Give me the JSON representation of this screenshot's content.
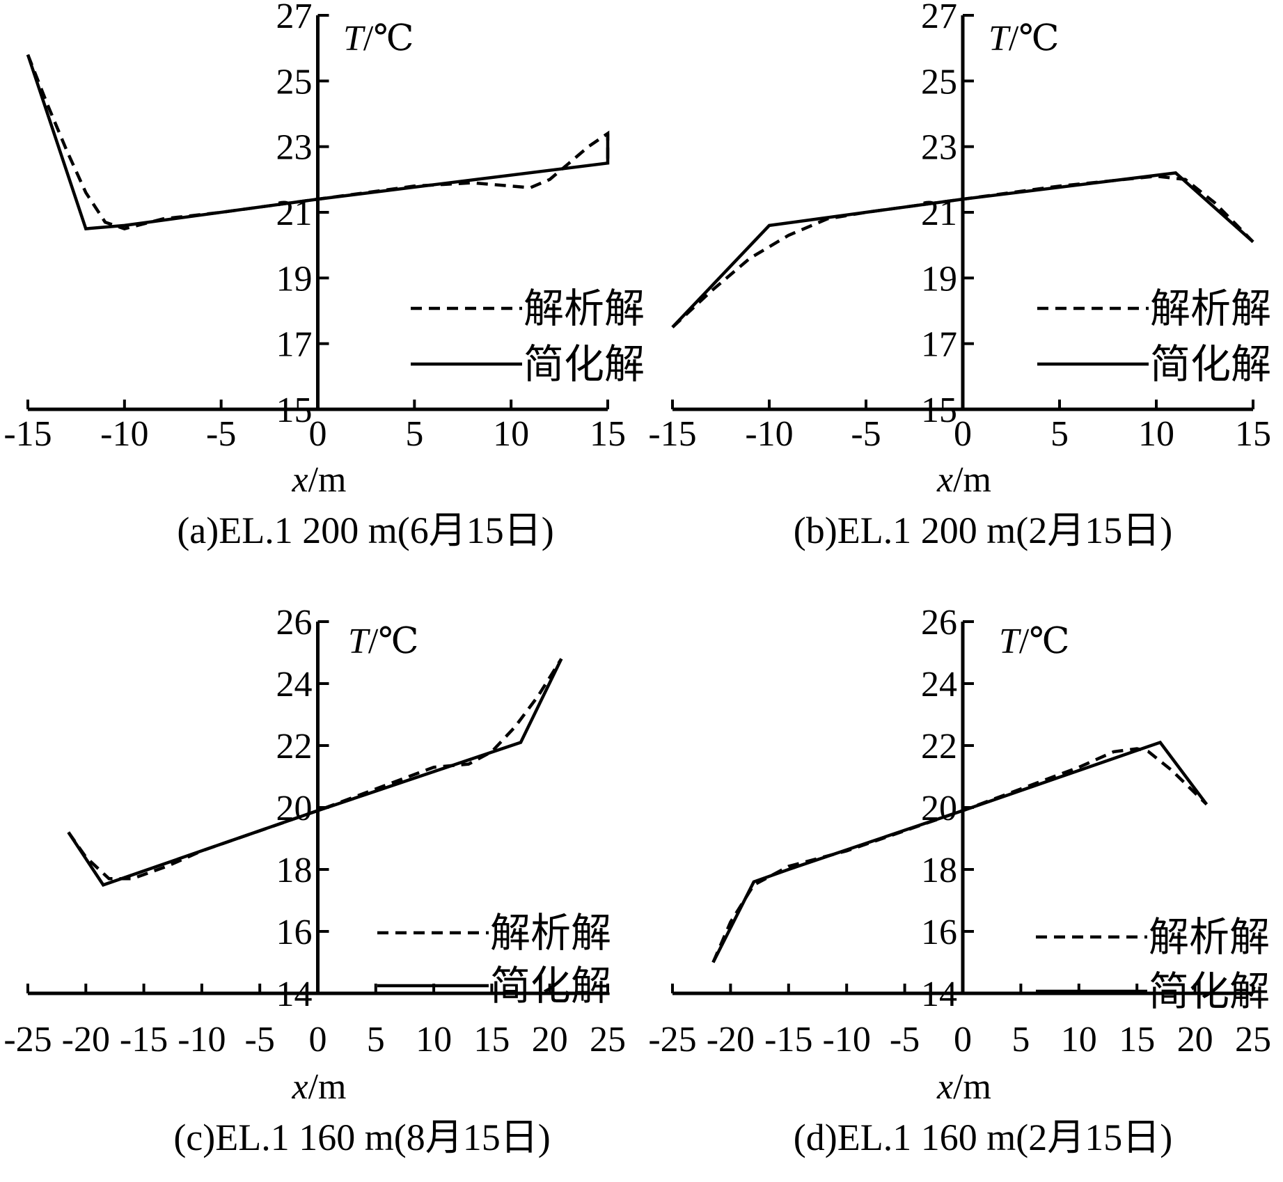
{
  "chart_data": [
    {
      "type": "line",
      "caption": "(a)EL.1 200 m(6月15日)",
      "ylabel_var": "T",
      "ylabel_unit": "/℃",
      "xlabel_var": "x",
      "xlabel_unit": "/m",
      "xlim": [
        -15,
        15
      ],
      "ylim": [
        15,
        27
      ],
      "xticks": [
        -15,
        -10,
        -5,
        0,
        5,
        10,
        15
      ],
      "xtick_labels": [
        "-15",
        "-10",
        "-5",
        "0",
        "5",
        "10",
        "15"
      ],
      "yticks": [
        15,
        17,
        19,
        21,
        23,
        25,
        27
      ],
      "ytick_labels": [
        "15",
        "17",
        "19",
        "21",
        "23",
        "25",
        "27"
      ],
      "legend": [
        "解析解",
        "简化解"
      ],
      "series": [
        {
          "name": "解析解",
          "style": "dashed",
          "x": [
            -15,
            -14,
            -13,
            -12,
            -11,
            -10,
            -8,
            -5,
            0,
            5,
            8,
            10,
            11,
            12,
            13,
            14,
            15,
            15
          ],
          "y": [
            25.8,
            24.3,
            22.9,
            21.6,
            20.7,
            20.5,
            20.8,
            21.0,
            21.4,
            21.8,
            21.9,
            21.8,
            21.75,
            22.0,
            22.5,
            23.0,
            23.4,
            22.5
          ]
        },
        {
          "name": "简化解",
          "style": "solid",
          "x": [
            -15,
            -12,
            -10,
            0,
            15,
            15
          ],
          "y": [
            25.8,
            20.5,
            20.6,
            21.4,
            22.5,
            23.4
          ]
        }
      ]
    },
    {
      "type": "line",
      "caption": "(b)EL.1 200 m(2月15日)",
      "ylabel_var": "T",
      "ylabel_unit": "/℃",
      "xlabel_var": "x",
      "xlabel_unit": "/m",
      "xlim": [
        -15,
        15
      ],
      "ylim": [
        15,
        27
      ],
      "xticks": [
        -15,
        -10,
        -5,
        0,
        5,
        10,
        15
      ],
      "xtick_labels": [
        "-15",
        "-10",
        "-5",
        "0",
        "5",
        "10",
        "15"
      ],
      "yticks": [
        15,
        17,
        19,
        21,
        23,
        25,
        27
      ],
      "ytick_labels": [
        "15",
        "17",
        "19",
        "21",
        "23",
        "25",
        "27"
      ],
      "legend": [
        "解析解",
        "简化解"
      ],
      "series": [
        {
          "name": "解析解",
          "style": "dashed",
          "x": [
            -15,
            -13,
            -11,
            -9,
            -7,
            -5,
            0,
            5,
            10,
            11.5,
            13,
            15
          ],
          "y": [
            17.5,
            18.6,
            19.6,
            20.3,
            20.8,
            21.0,
            21.4,
            21.8,
            22.1,
            22.0,
            21.3,
            20.1
          ]
        },
        {
          "name": "简化解",
          "style": "solid",
          "x": [
            -15,
            -10,
            0,
            11,
            15
          ],
          "y": [
            17.5,
            20.6,
            21.4,
            22.2,
            20.1
          ]
        }
      ]
    },
    {
      "type": "line",
      "caption": "(c)EL.1 160 m(8月15日)",
      "ylabel_var": "T",
      "ylabel_unit": "/℃",
      "xlabel_var": "x",
      "xlabel_unit": "/m",
      "xlim": [
        -25,
        25
      ],
      "ylim": [
        14,
        26
      ],
      "xticks": [
        -25,
        -20,
        -15,
        -10,
        -5,
        0,
        5,
        10,
        15,
        20,
        25
      ],
      "xtick_labels": [
        "-25",
        "-20",
        "-15",
        "-10",
        "-5",
        "0",
        "5",
        "10",
        "15",
        "20",
        "25"
      ],
      "yticks": [
        14,
        16,
        18,
        20,
        22,
        24,
        26
      ],
      "ytick_labels": [
        "14",
        "16",
        "18",
        "20",
        "22",
        "24",
        "26"
      ],
      "legend": [
        "解析解",
        "简化解"
      ],
      "series": [
        {
          "name": "解析解",
          "style": "dashed",
          "x": [
            -21.5,
            -20,
            -18,
            -16,
            -13,
            -10,
            0,
            10,
            13,
            15,
            17,
            19,
            21
          ],
          "y": [
            19.2,
            18.4,
            17.7,
            17.7,
            18.1,
            18.6,
            19.9,
            21.3,
            21.4,
            21.8,
            22.6,
            23.6,
            24.8
          ]
        },
        {
          "name": "简化解",
          "style": "solid",
          "x": [
            -21.5,
            -18.5,
            0,
            17.5,
            21
          ],
          "y": [
            19.2,
            17.5,
            19.9,
            22.1,
            24.8
          ]
        }
      ]
    },
    {
      "type": "line",
      "caption": "(d)EL.1 160 m(2月15日)",
      "ylabel_var": "T",
      "ylabel_unit": "/℃",
      "xlabel_var": "x",
      "xlabel_unit": "/m",
      "xlim": [
        -25,
        25
      ],
      "ylim": [
        14,
        26
      ],
      "xticks": [
        -25,
        -20,
        -15,
        -10,
        -5,
        0,
        5,
        10,
        15,
        20,
        25
      ],
      "xtick_labels": [
        "-25",
        "-20",
        "-15",
        "-10",
        "-5",
        "0",
        "5",
        "10",
        "15",
        "20",
        "25"
      ],
      "yticks": [
        14,
        16,
        18,
        20,
        22,
        24,
        26
      ],
      "ytick_labels": [
        "14",
        "16",
        "18",
        "20",
        "22",
        "24",
        "26"
      ],
      "legend": [
        "解析解",
        "简化解"
      ],
      "series": [
        {
          "name": "解析解",
          "style": "dashed",
          "x": [
            -21.5,
            -20,
            -18,
            -15,
            -10,
            0,
            10,
            13,
            15,
            16,
            18,
            21
          ],
          "y": [
            15.0,
            16.3,
            17.5,
            18.1,
            18.6,
            19.9,
            21.3,
            21.8,
            21.9,
            21.8,
            21.2,
            20.1
          ]
        },
        {
          "name": "简化解",
          "style": "solid",
          "x": [
            -21.5,
            -18,
            -15,
            0,
            17,
            21
          ],
          "y": [
            15.0,
            17.6,
            18.0,
            19.9,
            22.1,
            20.1
          ]
        }
      ]
    }
  ]
}
